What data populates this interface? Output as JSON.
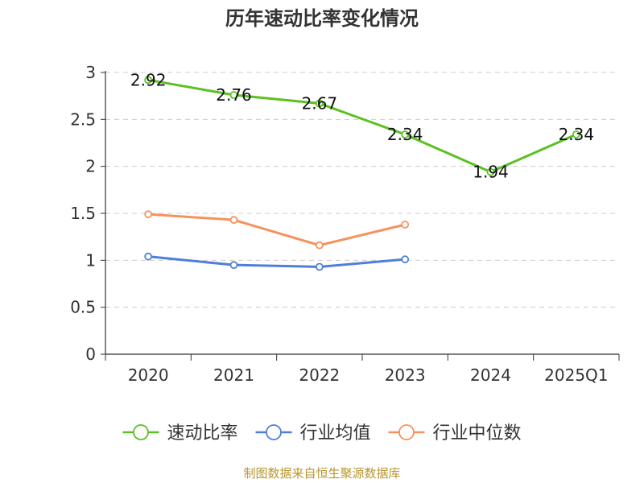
{
  "chart_data": {
    "type": "line",
    "title": "历年速动比率变化情况",
    "categories": [
      "2020",
      "2021",
      "2022",
      "2023",
      "2024",
      "2025Q1"
    ],
    "ylim": [
      0,
      3
    ],
    "yticks": [
      0,
      0.5,
      1,
      1.5,
      2,
      2.5,
      3
    ],
    "ytick_labels": [
      "0",
      "0.5",
      "1",
      "1.5",
      "2",
      "2.5",
      "3"
    ],
    "grid": true,
    "legend_position": "bottom",
    "series": [
      {
        "name": "速动比率",
        "color": "#5bc022",
        "values": [
          2.92,
          2.76,
          2.67,
          2.34,
          1.94,
          2.34
        ],
        "value_labels": [
          "2.92",
          "2.76",
          "2.67",
          "2.34",
          "1.94",
          "2.34"
        ],
        "show_labels": true
      },
      {
        "name": "行业均值",
        "color": "#4f7fdb",
        "values": [
          1.04,
          0.95,
          0.93,
          1.01,
          null,
          null
        ],
        "show_labels": false
      },
      {
        "name": "行业中位数",
        "color": "#f5925e",
        "values": [
          1.49,
          1.43,
          1.16,
          1.38,
          null,
          null
        ],
        "show_labels": false
      }
    ]
  },
  "source_note": "制图数据来自恒生聚源数据库"
}
